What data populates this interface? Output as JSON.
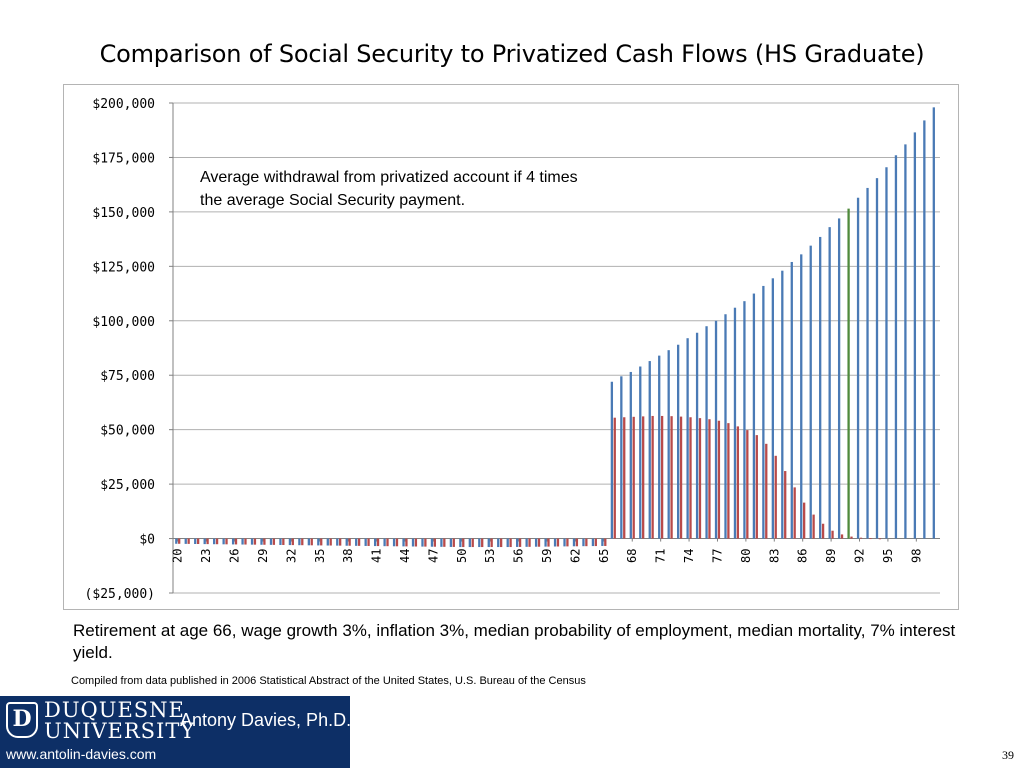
{
  "slide": {
    "title": "Comparison of Social Security to Privatized Cash Flows (HS Graduate)",
    "annotation_line1": "Average withdrawal from privatized account if 4 times",
    "annotation_line2": "the average Social Security payment.",
    "footnote": "Retirement at age 66, wage growth 3%, inflation 3%, median probability of employment, median mortality, 7% interest yield.",
    "source": "Compiled from data published in 2006 Statistical Abstract of the United States, U.S. Bureau of the Census",
    "page_number": "39"
  },
  "logo": {
    "university_line1": "DUQUESNE",
    "university_line2": "UNIVERSITY",
    "author": "Antony Davies, Ph.D.",
    "url": "www.antolin-davies.com",
    "emblem_letter": "D"
  },
  "colors": {
    "privatized": "#4a7ab5",
    "social_security": "#b84a4a",
    "highlight_bar": "#4f8a3c",
    "gridline": "#b0b0b0",
    "logo_background": "#0d2f66"
  },
  "chart_data": {
    "type": "bar",
    "title": "",
    "xlabel": "",
    "ylabel": "",
    "ylim": [
      -25000,
      200000
    ],
    "y_ticks": [
      -25000,
      0,
      25000,
      50000,
      75000,
      100000,
      125000,
      150000,
      175000,
      200000
    ],
    "y_tick_labels": [
      "($25,000)",
      "$0",
      "$25,000",
      "$50,000",
      "$75,000",
      "$100,000",
      "$125,000",
      "$150,000",
      "$175,000",
      "$200,000"
    ],
    "x_tick_labels": [
      "20",
      "23",
      "26",
      "29",
      "32",
      "35",
      "38",
      "41",
      "44",
      "47",
      "50",
      "53",
      "56",
      "59",
      "62",
      "65",
      "68",
      "71",
      "74",
      "77",
      "80",
      "83",
      "86",
      "89",
      "92",
      "95",
      "98"
    ],
    "grid": true,
    "legend": "none",
    "categories": [
      20,
      21,
      22,
      23,
      24,
      25,
      26,
      27,
      28,
      29,
      30,
      31,
      32,
      33,
      34,
      35,
      36,
      37,
      38,
      39,
      40,
      41,
      42,
      43,
      44,
      45,
      46,
      47,
      48,
      49,
      50,
      51,
      52,
      53,
      54,
      55,
      56,
      57,
      58,
      59,
      60,
      61,
      62,
      63,
      64,
      65,
      66,
      67,
      68,
      69,
      70,
      71,
      72,
      73,
      74,
      75,
      76,
      77,
      78,
      79,
      80,
      81,
      82,
      83,
      84,
      85,
      86,
      87,
      88,
      89,
      90,
      91,
      92,
      93,
      94,
      95,
      96,
      97,
      98,
      99,
      100
    ],
    "series": [
      {
        "values": [
          -2400,
          -2450,
          -2500,
          -2550,
          -2600,
          -2650,
          -2700,
          -2750,
          -2800,
          -2850,
          -2900,
          -2950,
          -3000,
          -3050,
          -3100,
          -3150,
          -3200,
          -3250,
          -3300,
          -3350,
          -3400,
          -3450,
          -3500,
          -3550,
          -3600,
          -3650,
          -3700,
          -3750,
          -3800,
          -3850,
          -3900,
          -3900,
          -3900,
          -3900,
          -3900,
          -3900,
          -3850,
          -3800,
          -3750,
          -3700,
          -3650,
          -3600,
          -3550,
          -3500,
          -3450,
          -3400,
          72000,
          74500,
          76500,
          79000,
          81500,
          84000,
          86500,
          89000,
          92000,
          94500,
          97500,
          100000,
          103000,
          106000,
          109000,
          112500,
          116000,
          119500,
          123000,
          127000,
          130500,
          134500,
          138500,
          143000,
          147000,
          151500,
          156500,
          161000,
          165500,
          170500,
          176000,
          181000,
          186500,
          192000,
          198000
        ]
      },
      {
        "values": [
          -2400,
          -2450,
          -2500,
          -2550,
          -2600,
          -2650,
          -2700,
          -2750,
          -2800,
          -2850,
          -2900,
          -2950,
          -3000,
          -3050,
          -3100,
          -3150,
          -3200,
          -3250,
          -3300,
          -3350,
          -3400,
          -3450,
          -3500,
          -3550,
          -3600,
          -3650,
          -3700,
          -3750,
          -3800,
          -3850,
          -3900,
          -3900,
          -3900,
          -3900,
          -3900,
          -3900,
          -3850,
          -3800,
          -3750,
          -3700,
          -3650,
          -3600,
          -3550,
          -3500,
          -3450,
          -3400,
          55500,
          55700,
          55900,
          56100,
          56300,
          56300,
          56200,
          56000,
          55700,
          55300,
          54800,
          54100,
          53000,
          51500,
          49800,
          47500,
          43500,
          38000,
          31000,
          23500,
          16500,
          11000,
          6800,
          3600,
          1900,
          900,
          400,
          150,
          50,
          0,
          0,
          0,
          0,
          0,
          0
        ]
      }
    ],
    "highlight_index": 71
  }
}
